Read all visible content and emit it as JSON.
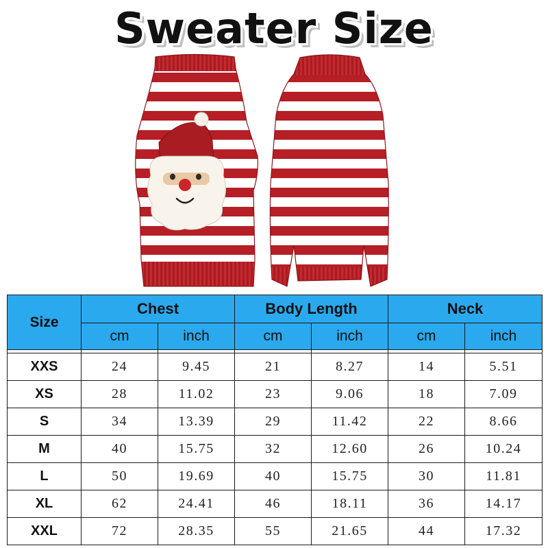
{
  "title": "Sweater Size",
  "table": {
    "size_header": "Size",
    "groups": [
      "Chest",
      "Body Length",
      "Neck"
    ],
    "units": [
      "cm",
      "inch",
      "cm",
      "inch",
      "cm",
      "inch"
    ],
    "rows": [
      {
        "size": "XXS",
        "values": [
          "24",
          "9.45",
          "21",
          "8.27",
          "14",
          "5.51"
        ]
      },
      {
        "size": "XS",
        "values": [
          "28",
          "11.02",
          "23",
          "9.06",
          "18",
          "7.09"
        ]
      },
      {
        "size": "S",
        "values": [
          "34",
          "13.39",
          "29",
          "11.42",
          "22",
          "8.66"
        ]
      },
      {
        "size": "M",
        "values": [
          "40",
          "15.75",
          "32",
          "12.60",
          "26",
          "10.24"
        ]
      },
      {
        "size": "L",
        "values": [
          "50",
          "19.69",
          "40",
          "15.75",
          "30",
          "11.81"
        ]
      },
      {
        "size": "XL",
        "values": [
          "62",
          "24.41",
          "46",
          "18.11",
          "36",
          "14.17"
        ]
      },
      {
        "size": "XXL",
        "values": [
          "72",
          "28.35",
          "55",
          "21.65",
          "44",
          "17.32"
        ]
      }
    ]
  },
  "colors": {
    "header_bg": "#2aa9ee",
    "stripe_red": "#b51f25",
    "stripe_white": "#ffffff"
  },
  "images": {
    "front": "sweater-front-santa",
    "back": "sweater-back"
  }
}
